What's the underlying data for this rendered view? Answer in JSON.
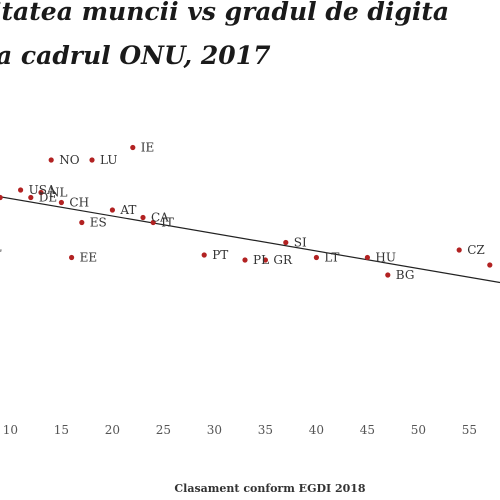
{
  "chart_data": {
    "type": "scatter",
    "title_line1": "itatea muncii vs gradul de digita",
    "title_line2": "a cadrul ONU, 2017",
    "xlabel": "Clasament conform  EGDI 2018",
    "xlim": [
      8,
      58
    ],
    "ylim": [
      0,
      100
    ],
    "x_ticks": [
      10,
      15,
      20,
      25,
      30,
      35,
      40,
      45,
      50,
      55
    ],
    "point_color": "#b22222",
    "points": [
      {
        "label": "IE",
        "x": 22,
        "y": 91
      },
      {
        "label": "NO",
        "x": 14,
        "y": 86
      },
      {
        "label": "LU",
        "x": 18,
        "y": 86
      },
      {
        "label": "USA",
        "x": 11,
        "y": 74
      },
      {
        "label": "NL",
        "x": 13,
        "y": 73
      },
      {
        "label": "",
        "x": 9,
        "y": 71
      },
      {
        "label": "DE",
        "x": 12,
        "y": 71
      },
      {
        "label": "CH",
        "x": 15,
        "y": 69
      },
      {
        "label": "AT",
        "x": 20,
        "y": 66
      },
      {
        "label": "CA",
        "x": 23,
        "y": 63
      },
      {
        "label": "IT",
        "x": 24,
        "y": 61
      },
      {
        "label": "ES",
        "x": 17,
        "y": 61
      },
      {
        "label": "SI",
        "x": 37,
        "y": 53
      },
      {
        "label": "CZ",
        "x": 54,
        "y": 50
      },
      {
        "label": "EE",
        "x": 16,
        "y": 47
      },
      {
        "label": "PT",
        "x": 29,
        "y": 48
      },
      {
        "label": "PL",
        "x": 33,
        "y": 46
      },
      {
        "label": "GR",
        "x": 35,
        "y": 46
      },
      {
        "label": "LT",
        "x": 40,
        "y": 47
      },
      {
        "label": "HU",
        "x": 45,
        "y": 47
      },
      {
        "label": "BG",
        "x": 47,
        "y": 40
      },
      {
        "label": "",
        "x": 57,
        "y": 44
      }
    ],
    "partial_labels": [
      {
        "text": "R",
        "x": 8.3,
        "y": 67
      },
      {
        "text": "NL",
        "x": 8.3,
        "y": 51
      }
    ],
    "trend_line": {
      "x1": 8,
      "y1": 72,
      "x2": 58,
      "y2": 37
    }
  }
}
